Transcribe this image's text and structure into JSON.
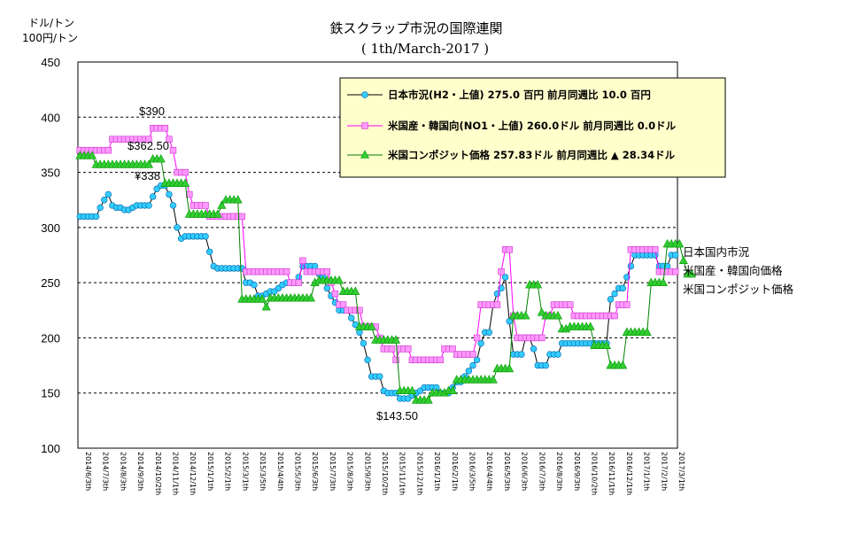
{
  "chart_data": {
    "type": "line",
    "title": "鉄スクラップ市況の国際連関",
    "subtitle": "( 1th/March-2017 )",
    "unit_labels": [
      "ドル/トン",
      "100円/トン"
    ],
    "ylim": [
      100,
      450
    ],
    "yticks": [
      "100",
      "150",
      "200",
      "250",
      "300",
      "350",
      "400",
      "450"
    ],
    "grid": "horizontal-dashed",
    "xtick_labels": [
      "2014/6/3th",
      "2014/7/3th",
      "2014/8/3th",
      "2014/9/3th",
      "2014/10/2th",
      "2014/11/1th",
      "2014/12/1th",
      "2015/1/1th",
      "2015/2/1th",
      "2015/3/1th",
      "2015/3/5th",
      "2015/4/4th",
      "2015/5/3th",
      "2015/6/3th",
      "2015/7/3th",
      "2015/8/3th",
      "2015/9/3th",
      "2015/10/2th",
      "2015/11/1th",
      "2015/12/1th",
      "2016/1/1th",
      "2016/2/1th",
      "2016/3/5th",
      "2016/4/4th",
      "2016/5/3th",
      "2016/6/3th",
      "2016/7/3th",
      "2016/8/3th",
      "2016/9/3th",
      "2016/10/2th",
      "2016/11/1th",
      "2016/12/1th",
      "2017/1/1th",
      "2017/2/1th",
      "2017/3/1th"
    ],
    "legend_position": "top-right",
    "legend": [
      "日本市況(H2・上値) 275.0 百円 前月同週比 10.0 百円",
      "米国産・韓国向(NO1・上値) 260.0ドル 前月同週比 0.0ドル",
      "米国コンポジット価格 257.83ドル 前月同週比 ▲ 28.34ドル"
    ],
    "right_labels": [
      "日本国内市況",
      "米国産・韓国向価格",
      "米国コンポジット価格"
    ],
    "annotations": [
      "$390",
      "$362.50",
      "¥338",
      "$143.50"
    ],
    "series": [
      {
        "color": "#33CCFF",
        "line_color": "#000000",
        "marker": "circle",
        "values": [
          310,
          310,
          310,
          310,
          310,
          318,
          325,
          330,
          320,
          318,
          318,
          316,
          316,
          318,
          320,
          320,
          320,
          320,
          328,
          335,
          338,
          338,
          330,
          320,
          300,
          290,
          292,
          292,
          292,
          292,
          292,
          292,
          278,
          265,
          263,
          263,
          263,
          263,
          263,
          263,
          263,
          250,
          250,
          248,
          238,
          238,
          240,
          242,
          242,
          245,
          248,
          250,
          250,
          250,
          255,
          265,
          265,
          265,
          265,
          258,
          255,
          245,
          238,
          232,
          225,
          225,
          225,
          218,
          212,
          205,
          195,
          180,
          165,
          165,
          165,
          152,
          150,
          150,
          150,
          145,
          145,
          145,
          148,
          150,
          152,
          155,
          155,
          155,
          155,
          150,
          150,
          150,
          155,
          160,
          160,
          165,
          170,
          175,
          180,
          195,
          205,
          205,
          230,
          240,
          245,
          255,
          215,
          185,
          185,
          185,
          200,
          200,
          190,
          175,
          175,
          175,
          185,
          185,
          185,
          195,
          195,
          195,
          195,
          195,
          195,
          195,
          195,
          195,
          195,
          195,
          195,
          235,
          240,
          245,
          245,
          255,
          265,
          275,
          275,
          275,
          275,
          275,
          275,
          265,
          265,
          265,
          275,
          275
        ]
      },
      {
        "color": "#FF99FF",
        "line_color": "#FF00FF",
        "marker": "square",
        "values": [
          370,
          370,
          370,
          370,
          370,
          370,
          370,
          370,
          380,
          380,
          380,
          380,
          380,
          380,
          380,
          380,
          380,
          380,
          390,
          390,
          390,
          390,
          380,
          370,
          350,
          350,
          350,
          330,
          320,
          320,
          320,
          320,
          310,
          310,
          310,
          310,
          310,
          310,
          310,
          310,
          310,
          260,
          260,
          260,
          260,
          260,
          260,
          260,
          260,
          260,
          260,
          260,
          250,
          250,
          250,
          270,
          260,
          260,
          260,
          260,
          260,
          260,
          250,
          240,
          230,
          230,
          225,
          225,
          225,
          225,
          210,
          210,
          210,
          210,
          200,
          190,
          190,
          190,
          180,
          190,
          190,
          190,
          180,
          180,
          180,
          180,
          180,
          180,
          180,
          180,
          190,
          190,
          190,
          185,
          185,
          185,
          185,
          185,
          200,
          230,
          230,
          230,
          230,
          230,
          260,
          280,
          280,
          220,
          200,
          200,
          200,
          200,
          200,
          200,
          200,
          220,
          220,
          230,
          230,
          230,
          230,
          230,
          220,
          220,
          220,
          220,
          220,
          220,
          220,
          220,
          220,
          220,
          220,
          230,
          230,
          230,
          280,
          280,
          280,
          280,
          280,
          280,
          280,
          260,
          260,
          260,
          260,
          260
        ]
      },
      {
        "color": "#33CC33",
        "line_color": "#008000",
        "marker": "triangle",
        "values": [
          365,
          365,
          365,
          365,
          357,
          357,
          357,
          357,
          357,
          357,
          357,
          357,
          357,
          357,
          357,
          357,
          357,
          357,
          362,
          362,
          362,
          340,
          340,
          340,
          340,
          340,
          340,
          312,
          312,
          312,
          312,
          312,
          312,
          312,
          312,
          320,
          325,
          325,
          325,
          325,
          235,
          235,
          235,
          235,
          235,
          235,
          228,
          236,
          236,
          236,
          236,
          236,
          236,
          236,
          236,
          236,
          236,
          236,
          250,
          252,
          252,
          252,
          252,
          252,
          252,
          242,
          242,
          242,
          242,
          210,
          210,
          210,
          210,
          198,
          198,
          198,
          198,
          198,
          198,
          152,
          152,
          152,
          152,
          143.5,
          143.5,
          143.5,
          143.5,
          150,
          150,
          150,
          150,
          152,
          152,
          162,
          162,
          162,
          162,
          162,
          162,
          162,
          162,
          162,
          162,
          172,
          172,
          172,
          172,
          220,
          220,
          220,
          220,
          248,
          248,
          248,
          223,
          220,
          220,
          220,
          220,
          208,
          208,
          210,
          210,
          210,
          210,
          210,
          210,
          193,
          193,
          193,
          193,
          175,
          175,
          175,
          175,
          205,
          205,
          205,
          205,
          205,
          205,
          250,
          250,
          250,
          250,
          285,
          285,
          285,
          285,
          270,
          257.83,
          257.83
        ]
      }
    ]
  }
}
